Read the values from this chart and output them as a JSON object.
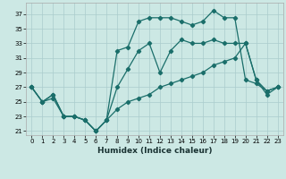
{
  "xlabel": "Humidex (Indice chaleur)",
  "background_color": "#cce8e4",
  "grid_color": "#aacccc",
  "line_color": "#1a6e6a",
  "xlim": [
    -0.5,
    23.5
  ],
  "ylim": [
    20.5,
    38.5
  ],
  "yticks": [
    21,
    23,
    25,
    27,
    29,
    31,
    33,
    35,
    37
  ],
  "xticks": [
    0,
    1,
    2,
    3,
    4,
    5,
    6,
    7,
    8,
    9,
    10,
    11,
    12,
    13,
    14,
    15,
    16,
    17,
    18,
    19,
    20,
    21,
    22,
    23
  ],
  "series1_x": [
    0,
    1,
    2,
    3,
    4,
    5,
    6,
    7,
    8,
    9,
    10,
    11,
    12,
    13,
    14,
    15,
    16,
    17,
    18,
    19,
    20,
    21,
    22,
    23
  ],
  "series1_y": [
    27,
    25,
    26,
    23,
    23,
    22.5,
    21,
    22.5,
    32,
    32.5,
    36,
    36.5,
    36.5,
    36.5,
    36,
    35.5,
    36,
    37.5,
    36.5,
    36.5,
    28,
    27.5,
    26.5,
    27
  ],
  "series2_x": [
    0,
    1,
    2,
    3,
    4,
    5,
    6,
    7,
    8,
    9,
    10,
    11,
    12,
    13,
    14,
    15,
    16,
    17,
    18,
    19,
    20,
    21,
    22,
    23
  ],
  "series2_y": [
    27,
    25,
    26,
    23,
    23,
    22.5,
    21,
    22.5,
    27,
    29.5,
    32,
    33,
    29,
    32,
    33.5,
    33,
    33,
    33.5,
    33,
    33,
    33,
    28,
    26,
    27
  ],
  "series3_x": [
    0,
    1,
    2,
    3,
    4,
    5,
    6,
    7,
    8,
    9,
    10,
    11,
    12,
    13,
    14,
    15,
    16,
    17,
    18,
    19,
    20,
    21,
    22,
    23
  ],
  "series3_y": [
    27,
    25,
    25.5,
    23,
    23,
    22.5,
    21,
    22.5,
    24,
    25,
    25.5,
    26,
    27,
    27.5,
    28,
    28.5,
    29,
    30,
    30.5,
    31,
    33,
    28,
    26.5,
    27
  ]
}
